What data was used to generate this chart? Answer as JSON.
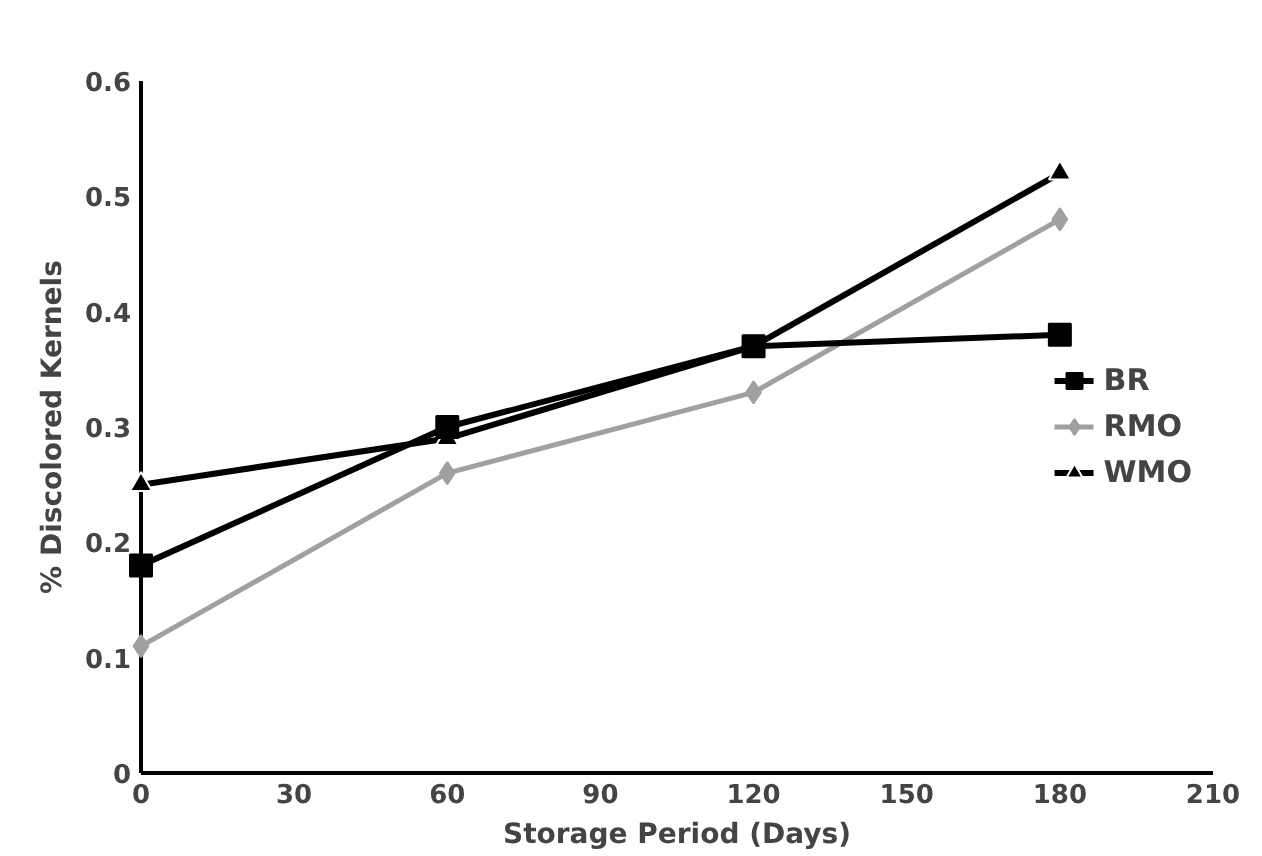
{
  "chart_data": {
    "type": "line",
    "xlabel": "Storage Period (Days)",
    "ylabel": "% Discolored Kernels",
    "x": [
      0,
      60,
      120,
      180
    ],
    "series": [
      {
        "name": "BR",
        "color": "#000000",
        "marker": "square",
        "values": [
          0.18,
          0.3,
          0.37,
          0.38
        ]
      },
      {
        "name": "RMO",
        "color": "#a0a0a0",
        "marker": "diamond",
        "values": [
          0.11,
          0.26,
          0.33,
          0.48
        ]
      },
      {
        "name": "WMO",
        "color": "#000000",
        "marker": "triangle",
        "values": [
          0.25,
          0.29,
          0.37,
          0.52
        ]
      }
    ],
    "xlim": [
      0,
      210
    ],
    "xticks": [
      0,
      30,
      60,
      90,
      120,
      150,
      180,
      210
    ],
    "ylim": [
      0,
      0.6
    ],
    "yticks": [
      0,
      0.1,
      0.2,
      0.3,
      0.4,
      0.5,
      0.6
    ],
    "grid": false,
    "legend": "right",
    "line_style": "solid"
  }
}
